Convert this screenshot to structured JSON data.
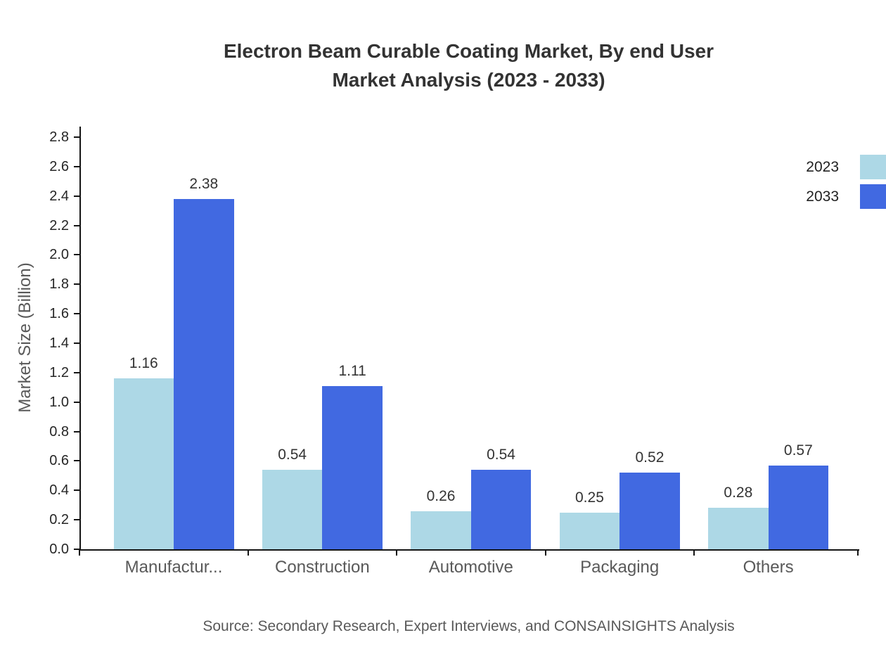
{
  "chart_data": {
    "type": "bar",
    "title_lines": [
      "Electron Beam Curable Coating Market, By end User",
      "Market Analysis (2023 - 2033)"
    ],
    "categories": [
      "Manufactur...",
      "Construction",
      "Automotive",
      "Packaging",
      "Others"
    ],
    "series": [
      {
        "name": "2023",
        "color": "#ADD8E6",
        "values": [
          1.16,
          0.54,
          0.26,
          0.25,
          0.28
        ]
      },
      {
        "name": "2033",
        "color": "#4169E1",
        "values": [
          2.38,
          1.11,
          0.54,
          0.52,
          0.57
        ]
      }
    ],
    "xlabel": "",
    "ylabel": "Market Size (Billion)",
    "ylim": [
      0.0,
      2.8
    ],
    "ytick_step": 0.2,
    "grid": false,
    "legend_position": "upper right",
    "source": "Source: Secondary Research, Expert Interviews, and CONSAINSIGHTS Analysis",
    "axis_color": "#141414",
    "value_label_color": "#333333"
  }
}
